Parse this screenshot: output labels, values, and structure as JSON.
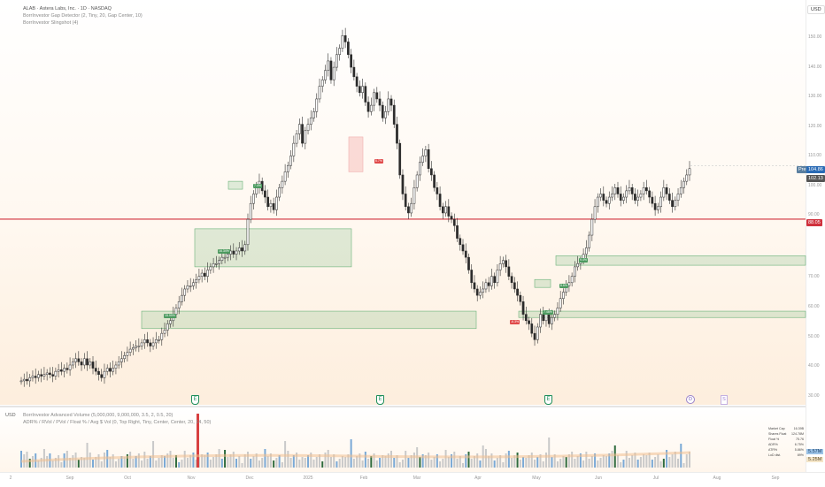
{
  "header": {
    "title": "ALAB · Astera Labs, Inc. · 1D · NASDAQ",
    "indicator1": "BorrInvestor Gap Detector (2, Tiny, 20, Gap Center, 10)",
    "indicator2": "BorrInvestor Slingshot (4)",
    "currency": "USD"
  },
  "volume_pane": {
    "currency": "USD",
    "indicator1": "BorrInvestor Advanced Volume (5,000,000, 9,000,000, 3.5, 2, 0.5, 20)",
    "indicator2": "ADR% / RVol / PVol / Float % / Avg $ Vol (0, Top Right, Tiny, Center, Center, 20, 14, 50)",
    "tag_upper": "5.57M",
    "tag_lower": "5.25M"
  },
  "stats": [
    {
      "label": "Market Cap",
      "value": "16.39B"
    },
    {
      "label": "Shares Float",
      "value": "124.78M"
    },
    {
      "label": "Float %",
      "value": "75.76"
    },
    {
      "label": "ADR%",
      "value": "6.75%"
    },
    {
      "label": "ATR%",
      "value": "5.86%"
    },
    {
      "label": "LoD dist.",
      "value": "89%"
    }
  ],
  "price_axis": [
    "150.00",
    "140.00",
    "130.00",
    "120.00",
    "110.00",
    "100.00",
    "90.00",
    "80.00",
    "70.00",
    "60.00",
    "50.00",
    "40.00",
    "30.00"
  ],
  "time_axis": [
    "2",
    "Sep",
    "Oct",
    "Nov",
    "Dec",
    "2025",
    "Feb",
    "Mar",
    "Apr",
    "May",
    "Jun",
    "Jul",
    "Aug",
    "Sep"
  ],
  "price_tags": {
    "last": "104.86",
    "last_prefix": "Pre",
    "prev": "102.13",
    "line": "88.05"
  },
  "markers": {
    "earnings": "E",
    "dividend": "D",
    "split": "S"
  },
  "gap_labels": [
    "15.99%",
    "16.34%",
    "7.4%",
    "8.6%",
    "9.4%",
    "-6.3%",
    "7.46%",
    "6.7%"
  ],
  "chart_data": {
    "type": "candlestick",
    "series": [
      {
        "name": "ALAB",
        "values": [
          37,
          37.5,
          37,
          38,
          38.5,
          38,
          39,
          38.5,
          39,
          39.5,
          39,
          38.5,
          40,
          40.5,
          40,
          41,
          40.5,
          42,
          43,
          44,
          43,
          42,
          44,
          42,
          43,
          41,
          40,
          39,
          38,
          40,
          41,
          40,
          41,
          42,
          43,
          44,
          45,
          46,
          47,
          47.5,
          48,
          48,
          49,
          50,
          49,
          48,
          49,
          50,
          50,
          52,
          53,
          55,
          56,
          58,
          60,
          62,
          64,
          66,
          67,
          67,
          68,
          69,
          70,
          71,
          70,
          72,
          73,
          74,
          74,
          75,
          76,
          76,
          77,
          78,
          77,
          78,
          79,
          78,
          80,
          88,
          93,
          96,
          98,
          100,
          97,
          95,
          92,
          93,
          91,
          95,
          98,
          100,
          103,
          105,
          108,
          112,
          115,
          118,
          112,
          116,
          118,
          120,
          122,
          126,
          130,
          132,
          135,
          138,
          132,
          136,
          140,
          142,
          146,
          144,
          140,
          136,
          133,
          130,
          128,
          130,
          125,
          122,
          124,
          128,
          126,
          124,
          120,
          122,
          126,
          124,
          118,
          112,
          102,
          96,
          92,
          90,
          93,
          98,
          102,
          106,
          108,
          110,
          104,
          102,
          98,
          96,
          92,
          90,
          92,
          89,
          88,
          86,
          82,
          80,
          78,
          76,
          72,
          68,
          66,
          64,
          65,
          66,
          68,
          67,
          70,
          68,
          72,
          74,
          75,
          73,
          70,
          68,
          66,
          64,
          62,
          58,
          56,
          55,
          52,
          50,
          54,
          58,
          56,
          58,
          55,
          57,
          58,
          60,
          63,
          65,
          67,
          68,
          70,
          73,
          74,
          75,
          77,
          79,
          83,
          88,
          92,
          95,
          96,
          94,
          93,
          95,
          96,
          98,
          96,
          94,
          95,
          97,
          98,
          96,
          94,
          95,
          96,
          98,
          97,
          95,
          93,
          91,
          92,
          95,
          98,
          96,
          94,
          92,
          94,
          96,
          98,
          100,
          102,
          104
        ]
      }
    ],
    "x_range": [
      "Aug 2024",
      "Sep 2025"
    ],
    "y_range": [
      30,
      155
    ],
    "horizontal_line": 88.05
  }
}
